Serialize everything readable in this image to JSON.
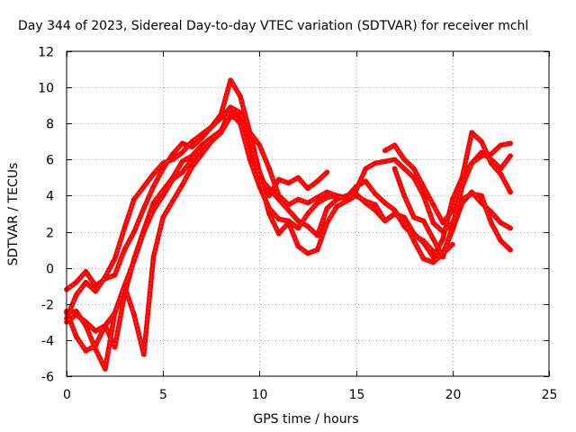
{
  "chart_data": {
    "type": "line",
    "title": "Day 344 of 2023, Sidereal Day-to-day VTEC variation (SDTVAR) for receiver mchl",
    "xlabel": "GPS time / hours",
    "ylabel": "SDTVAR / TECUs",
    "xlim": [
      0,
      25
    ],
    "ylim": [
      -6,
      12
    ],
    "xticks": [
      "0",
      "5",
      "10",
      "15",
      "20",
      "25"
    ],
    "yticks": [
      "-6",
      "-4",
      "-2",
      "0",
      "2",
      "4",
      "6",
      "8",
      "10",
      "12"
    ],
    "grid": true,
    "color": "#ff0000",
    "series": [
      {
        "name": "s1",
        "x": [
          0.0,
          0.5,
          1.0,
          1.5,
          2.0,
          2.5,
          3.0,
          3.5,
          4.0,
          4.5,
          5.0,
          5.5,
          6.0,
          6.5,
          7.0,
          7.5,
          8.0,
          8.5,
          9.0,
          9.5,
          10.0,
          10.5,
          11.0,
          11.5,
          12.0,
          12.5,
          13.0,
          13.5
        ],
        "y": [
          -1.2,
          -0.8,
          -0.2,
          -1.0,
          -0.6,
          -0.4,
          1.0,
          2.0,
          3.3,
          4.5,
          5.5,
          6.3,
          6.9,
          6.7,
          7.2,
          7.8,
          8.5,
          10.4,
          9.5,
          7.5,
          5.3,
          4.0,
          4.9,
          4.7,
          5.0,
          4.4,
          4.8,
          5.3
        ]
      },
      {
        "name": "s2",
        "x": [
          0.0,
          0.5,
          1.0,
          1.5,
          2.0,
          2.5,
          3.0,
          3.5,
          4.0,
          4.5,
          5.0,
          5.5,
          6.0,
          6.5,
          7.0,
          7.5,
          8.0,
          8.5,
          9.0,
          9.5,
          10.0,
          10.5,
          11.0,
          11.5,
          12.0,
          12.5,
          13.0,
          13.5,
          14.0,
          14.5,
          15.0,
          15.5,
          16.0,
          16.5,
          17.0,
          17.5,
          18.0,
          18.5,
          19.0,
          19.5,
          20.0,
          20.5,
          21.0,
          21.5,
          22.0,
          22.5,
          23.0
        ],
        "y": [
          -2.8,
          -1.5,
          -0.8,
          -1.3,
          -0.5,
          0.5,
          2.2,
          3.8,
          4.5,
          5.2,
          5.8,
          6.0,
          6.4,
          7.0,
          7.4,
          7.8,
          8.3,
          8.9,
          8.1,
          6.8,
          5.0,
          4.4,
          3.8,
          3.2,
          2.6,
          2.3,
          1.8,
          3.3,
          3.8,
          4.0,
          4.1,
          3.6,
          3.2,
          2.6,
          3.0,
          2.8,
          1.9,
          1.4,
          0.6,
          1.6,
          3.8,
          5.0,
          5.8,
          6.4,
          6.0,
          5.5,
          6.2
        ]
      },
      {
        "name": "s3",
        "x": [
          0.0,
          0.5,
          1.0,
          1.5,
          2.0,
          2.5,
          3.0,
          3.5,
          4.0,
          4.5,
          5.0,
          5.5,
          6.0,
          6.5,
          7.0,
          7.5,
          8.0,
          8.5,
          9.0,
          9.5,
          10.0,
          10.5,
          11.0,
          11.5,
          12.0,
          12.5,
          13.0,
          13.5,
          14.0,
          14.5,
          15.0,
          15.5,
          16.0,
          16.5,
          17.0,
          17.5,
          18.0,
          18.5,
          19.0,
          19.5,
          20.0
        ],
        "y": [
          -2.4,
          -3.8,
          -4.6,
          -4.3,
          -3.2,
          -4.4,
          -1.5,
          0.5,
          2.1,
          3.6,
          4.3,
          5.0,
          5.9,
          6.2,
          6.8,
          7.2,
          7.6,
          8.6,
          8.0,
          6.0,
          4.5,
          3.3,
          2.7,
          2.6,
          2.2,
          3.0,
          3.6,
          3.9,
          4.0,
          3.9,
          4.5,
          4.8,
          4.1,
          3.6,
          3.2,
          2.3,
          1.8,
          1.5,
          0.9,
          0.8,
          1.3
        ]
      },
      {
        "name": "s4",
        "x": [
          0.0,
          0.5,
          1.0,
          1.5,
          2.0,
          2.5,
          3.0,
          3.5,
          4.0,
          4.5,
          5.0,
          5.5,
          6.0,
          6.5,
          7.0,
          7.5,
          8.0,
          8.5,
          9.0,
          9.5,
          10.0,
          10.5,
          11.0,
          11.5,
          12.0,
          12.5,
          13.0,
          13.5,
          14.0,
          14.5,
          15.0,
          15.5,
          16.0,
          16.5,
          17.0,
          17.5,
          18.0,
          18.5,
          19.0,
          19.5,
          20.0,
          20.5,
          21.0,
          21.5,
          22.0,
          22.5,
          23.0
        ],
        "y": [
          -2.5,
          -2.4,
          -3.2,
          -4.5,
          -5.6,
          -2.5,
          -1.0,
          -2.6,
          -4.8,
          0.6,
          2.8,
          3.7,
          4.6,
          5.6,
          6.3,
          7.0,
          7.5,
          8.9,
          8.6,
          7.3,
          5.0,
          3.0,
          1.9,
          2.5,
          1.2,
          0.8,
          1.0,
          2.5,
          3.4,
          3.7,
          4.0,
          3.7,
          3.5,
          2.6,
          3.0,
          2.6,
          1.5,
          0.5,
          0.3,
          0.8,
          2.1,
          3.6,
          4.2,
          3.6,
          3.1,
          2.5,
          2.2
        ]
      },
      {
        "name": "s5",
        "x": [
          0.0,
          0.5,
          1.0,
          1.5,
          2.0,
          2.5,
          3.0,
          3.5,
          4.0,
          4.5,
          5.0,
          5.5,
          6.0,
          6.5,
          7.0,
          7.5,
          8.0,
          8.5,
          9.0,
          9.5,
          10.0,
          10.5,
          11.0,
          11.5,
          12.0,
          12.5,
          13.0,
          13.5,
          14.0,
          14.5,
          15.0,
          15.5,
          16.0,
          16.5,
          17.0,
          17.5,
          18.0,
          18.5,
          19.0,
          19.5,
          20.0,
          20.5,
          21.0,
          21.5,
          22.0,
          22.5,
          23.0
        ],
        "y": [
          -3.0,
          -2.6,
          -3.0,
          -3.5,
          -3.2,
          -2.5,
          -1.0,
          0.4,
          2.0,
          3.2,
          4.0,
          4.9,
          5.3,
          6.0,
          6.6,
          7.2,
          7.5,
          8.4,
          8.2,
          7.5,
          6.8,
          5.5,
          4.0,
          3.5,
          3.8,
          3.6,
          3.9,
          4.2,
          4.0,
          3.8,
          4.3,
          5.5,
          5.8,
          5.9,
          6.0,
          5.5,
          5.0,
          4.0,
          2.5,
          2.0,
          2.5,
          3.8,
          4.1,
          4.0,
          2.5,
          1.5,
          1.0
        ]
      },
      {
        "name": "s6",
        "x": [
          16.5,
          17.0,
          17.5,
          18.0,
          18.5,
          19.0,
          19.5,
          20.0,
          20.5,
          21.0,
          21.5,
          22.0,
          22.5,
          23.0
        ],
        "y": [
          6.5,
          6.8,
          6.0,
          5.5,
          4.5,
          3.5,
          2.5,
          3.2,
          5.0,
          7.5,
          7.0,
          5.8,
          5.2,
          4.2
        ]
      },
      {
        "name": "s7",
        "x": [
          17.0,
          17.5,
          18.0,
          18.5,
          19.0,
          19.5,
          20.0,
          20.5,
          21.0,
          21.5,
          22.0,
          22.5,
          23.0
        ],
        "y": [
          5.5,
          4.0,
          2.8,
          2.6,
          1.6,
          0.6,
          2.3,
          4.5,
          5.8,
          6.2,
          6.3,
          6.8,
          6.9
        ]
      }
    ]
  }
}
